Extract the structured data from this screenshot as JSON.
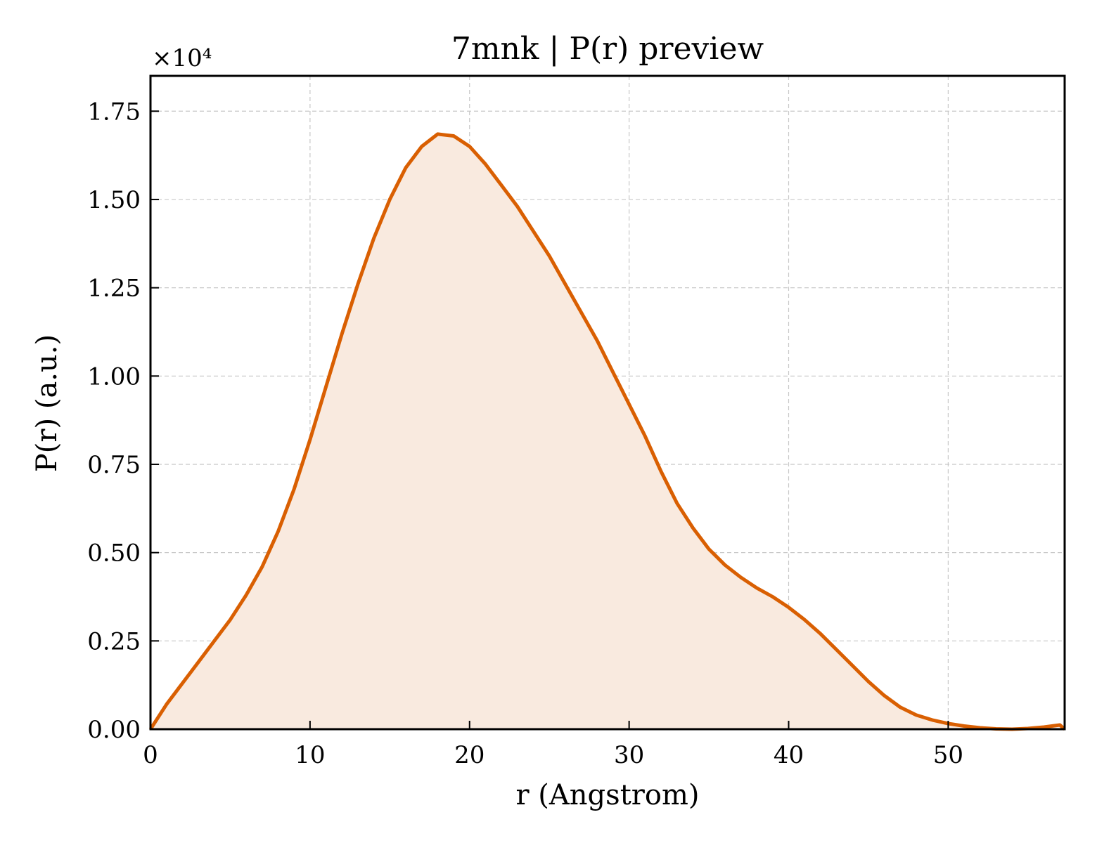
{
  "chart_data": {
    "type": "area",
    "title": "7mnk | P(r) preview",
    "xlabel": "r (Angstrom)",
    "ylabel": "P(r) (a.u.)",
    "y_offset_label": "×10⁴",
    "y_scale_factor": 10000,
    "xlim": [
      0,
      57.3
    ],
    "ylim": [
      0,
      18500
    ],
    "xticks": [
      0,
      10,
      20,
      30,
      40,
      50
    ],
    "yticks": [
      0,
      2500,
      5000,
      7500,
      10000,
      12500,
      15000,
      17500
    ],
    "ytick_labels": [
      "0.00",
      "0.25",
      "0.50",
      "0.75",
      "1.00",
      "1.25",
      "1.50",
      "1.75"
    ],
    "grid": true,
    "line_color": "#d95f02",
    "fill_color": "#f9eadf",
    "series": [
      {
        "x": [
          0,
          1,
          2,
          3,
          4,
          5,
          6,
          7,
          8,
          9,
          10,
          11,
          12,
          13,
          14,
          15,
          16,
          17,
          18,
          19,
          20,
          21,
          22,
          23,
          24,
          25,
          26,
          27,
          28,
          29,
          30,
          31,
          32,
          33,
          34,
          35,
          36,
          37,
          38,
          39,
          40,
          41,
          42,
          43,
          44,
          45,
          46,
          47,
          48,
          49,
          50,
          51,
          52,
          53,
          54,
          55,
          56,
          57,
          57.3
        ],
        "y": [
          0,
          700,
          1300,
          1900,
          2500,
          3100,
          3800,
          4600,
          5600,
          6800,
          8200,
          9700,
          11200,
          12600,
          13900,
          15000,
          15900,
          16500,
          16850,
          16800,
          16500,
          16000,
          15400,
          14800,
          14100,
          13400,
          12600,
          11800,
          11000,
          10100,
          9200,
          8300,
          7300,
          6400,
          5700,
          5100,
          4650,
          4300,
          4000,
          3750,
          3450,
          3100,
          2700,
          2250,
          1800,
          1350,
          950,
          620,
          400,
          260,
          160,
          90,
          40,
          10,
          0,
          20,
          60,
          120,
          0
        ]
      }
    ]
  }
}
